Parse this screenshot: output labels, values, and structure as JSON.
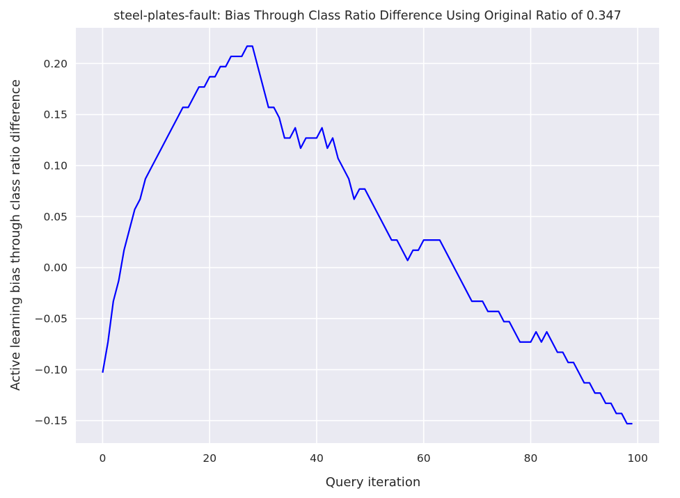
{
  "chart_data": {
    "type": "line",
    "title": "steel-plates-fault: Bias Through Class Ratio Difference Using Original Ratio of 0.347",
    "xlabel": "Query iteration",
    "ylabel": "Active learning bias through class ratio difference",
    "xlim": [
      -5,
      104
    ],
    "ylim": [
      -0.172,
      0.235
    ],
    "xticks": [
      0,
      20,
      40,
      60,
      80,
      100
    ],
    "xtick_labels": [
      "0",
      "20",
      "40",
      "60",
      "80",
      "100"
    ],
    "yticks": [
      -0.15,
      -0.1,
      -0.05,
      0.0,
      0.05,
      0.1,
      0.15,
      0.2
    ],
    "ytick_labels": [
      "−0.15",
      "−0.10",
      "−0.05",
      "0.00",
      "0.05",
      "0.10",
      "0.15",
      "0.20"
    ],
    "grid": true,
    "legend": "none",
    "colors": {
      "line": "#0000ff",
      "plot_background": "#eaeaf2",
      "grid": "#ffffff"
    },
    "series": [
      {
        "x": [
          0,
          1,
          2,
          3,
          4,
          5,
          6,
          7,
          8,
          9,
          10,
          11,
          12,
          13,
          14,
          15,
          16,
          17,
          18,
          19,
          20,
          21,
          22,
          23,
          24,
          25,
          26,
          27,
          28,
          29,
          30,
          31,
          32,
          33,
          34,
          35,
          36,
          37,
          38,
          39,
          40,
          41,
          42,
          43,
          44,
          45,
          46,
          47,
          48,
          49,
          50,
          51,
          52,
          53,
          54,
          55,
          56,
          57,
          58,
          59,
          60,
          61,
          62,
          63,
          64,
          65,
          66,
          67,
          68,
          69,
          70,
          71,
          72,
          73,
          74,
          75,
          76,
          77,
          78,
          79,
          80,
          81,
          82,
          83,
          84,
          85,
          86,
          87,
          88,
          89,
          90,
          91,
          92,
          93,
          94,
          95,
          96,
          97,
          98,
          99
        ],
        "values": [
          -0.103,
          -0.073,
          -0.033,
          -0.013,
          0.017,
          0.037,
          0.057,
          0.067,
          0.087,
          0.097,
          0.107,
          0.117,
          0.127,
          0.137,
          0.147,
          0.157,
          0.157,
          0.167,
          0.177,
          0.177,
          0.187,
          0.187,
          0.197,
          0.197,
          0.207,
          0.207,
          0.207,
          0.217,
          0.217,
          0.197,
          0.177,
          0.157,
          0.157,
          0.147,
          0.127,
          0.127,
          0.137,
          0.117,
          0.127,
          0.127,
          0.127,
          0.137,
          0.117,
          0.127,
          0.107,
          0.097,
          0.087,
          0.067,
          0.077,
          0.077,
          0.067,
          0.057,
          0.047,
          0.037,
          0.027,
          0.027,
          0.017,
          0.007,
          0.017,
          0.017,
          0.027,
          0.027,
          0.027,
          0.027,
          0.017,
          0.007,
          -0.003,
          -0.013,
          -0.023,
          -0.033,
          -0.033,
          -0.033,
          -0.043,
          -0.043,
          -0.043,
          -0.053,
          -0.053,
          -0.063,
          -0.073,
          -0.073,
          -0.073,
          -0.063,
          -0.073,
          -0.063,
          -0.073,
          -0.083,
          -0.083,
          -0.093,
          -0.093,
          -0.103,
          -0.113,
          -0.113,
          -0.123,
          -0.123,
          -0.133,
          -0.133,
          -0.143,
          -0.143,
          -0.153,
          -0.153
        ]
      }
    ]
  }
}
